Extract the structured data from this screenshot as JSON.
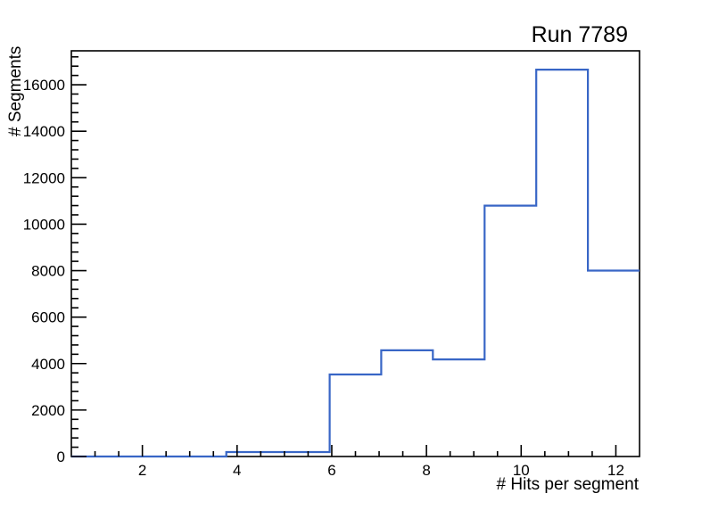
{
  "chart_data": {
    "type": "bar",
    "subtype": "step-histogram",
    "title": "Run 7789",
    "xlabel": "# Hits per segment",
    "ylabel": "# Segments",
    "bin_edges": [
      0.5,
      1.591,
      2.682,
      3.773,
      4.864,
      5.955,
      7.045,
      8.136,
      9.227,
      10.318,
      11.409,
      12.5
    ],
    "counts": [
      0,
      0,
      0,
      190,
      190,
      3530,
      4570,
      4180,
      10800,
      16650,
      8000
    ],
    "xlim": [
      0.5,
      12.5
    ],
    "ylim": [
      0,
      17460
    ],
    "x_major_ticks": [
      2,
      4,
      6,
      8,
      10,
      12
    ],
    "x_minor_step": 0.5,
    "y_major_ticks": [
      0,
      2000,
      4000,
      6000,
      8000,
      10000,
      12000,
      14000,
      16000
    ],
    "y_minor_step": 400,
    "grid": false,
    "legend_position": "none",
    "colors": {
      "line": "#3866c6",
      "axis": "#000000",
      "background": "#ffffff"
    }
  }
}
